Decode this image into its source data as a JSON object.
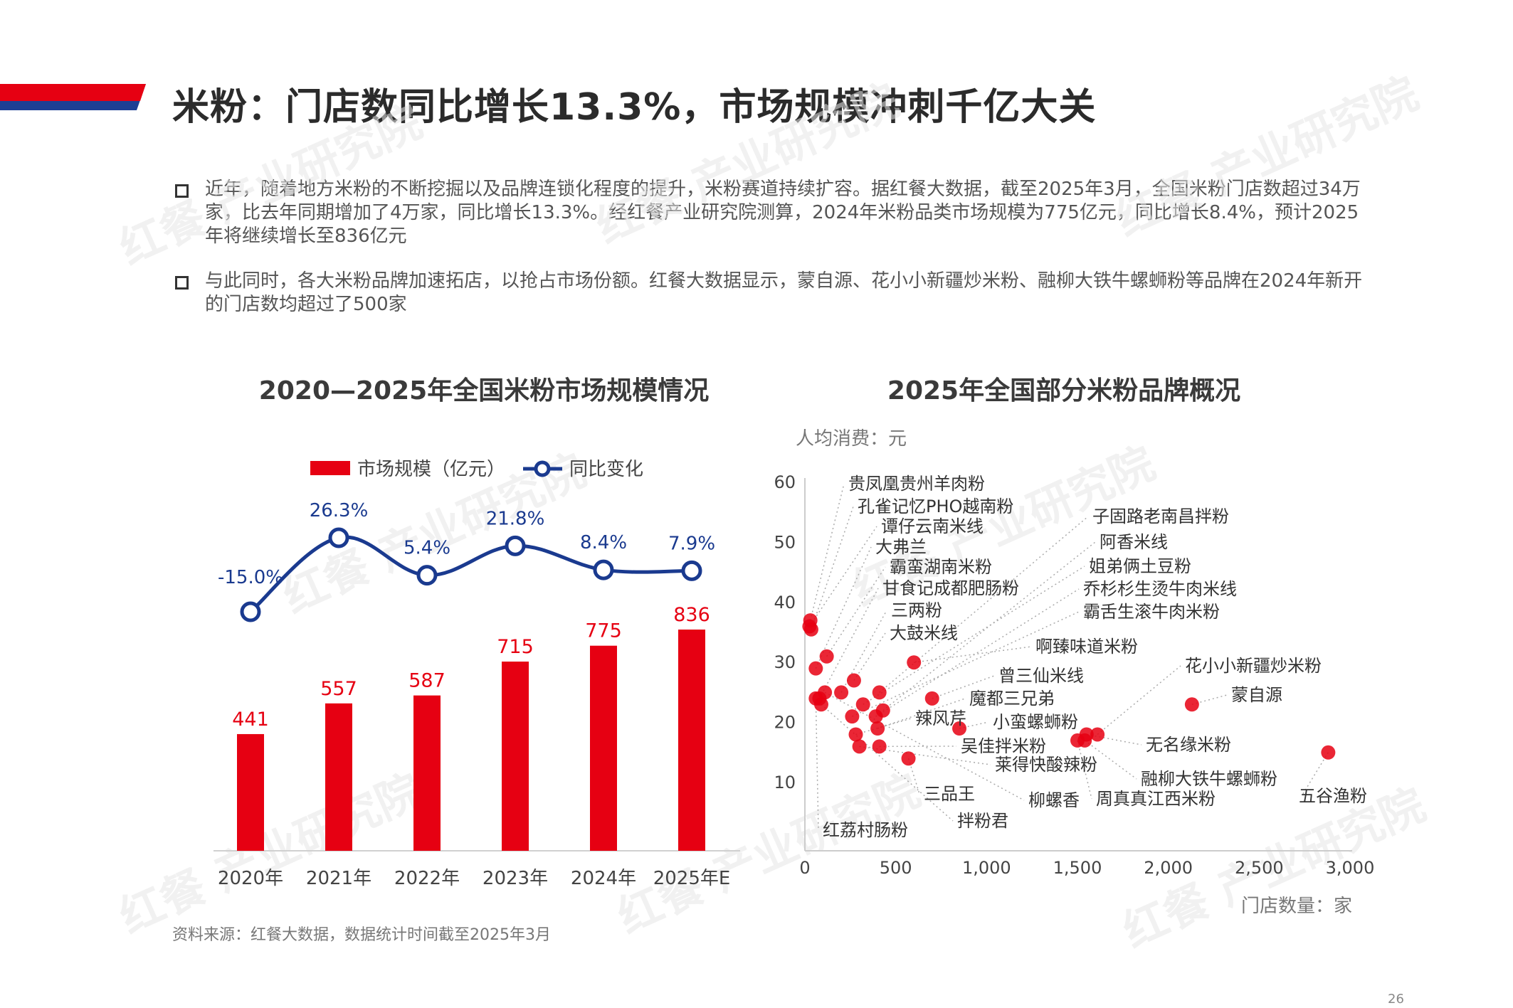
{
  "header": {
    "title": "米粉：门店数同比增长13.3%，市场规模冲刺千亿大关"
  },
  "bullets": [
    "近年，随着地方米粉的不断挖掘以及品牌连锁化程度的提升，米粉赛道持续扩容。据红餐大数据，截至2025年3月，全国米粉门店数超过34万家，比去年同期增加了4万家，同比增长13.3%。经红餐产业研究院测算，2024年米粉品类市场规模为775亿元，同比增长8.4%，预计2025年将继续增长至836亿元",
    "与此同时，各大米粉品牌加速拓店，以抢占市场份额。红餐大数据显示，蒙自源、花小小新疆炒米粉、融柳大铁牛螺蛳粉等品牌在2024年新开的门店数均超过了500家"
  ],
  "watermark_text": "红餐 产业研究院",
  "source": "资料来源：红餐大数据，数据统计时间截至2025年3月",
  "page_number": "26",
  "colors": {
    "red": "#e60012",
    "navy": "#1a3a8f",
    "header_blue": "#1d3f94"
  },
  "chart_data": [
    {
      "type": "bar",
      "title": "2020—2025年全国米粉市场规模情况",
      "categories": [
        "2020年",
        "2021年",
        "2022年",
        "2023年",
        "2024年",
        "2025年E"
      ],
      "series": [
        {
          "name": "市场规模（亿元）",
          "type": "bar",
          "values": [
            441,
            557,
            587,
            715,
            775,
            836
          ],
          "labels": [
            "441",
            "557",
            "587",
            "715",
            "775",
            "836"
          ]
        },
        {
          "name": "同比变化",
          "type": "line",
          "values": [
            -15.0,
            26.3,
            5.4,
            21.8,
            8.4,
            7.9
          ],
          "labels": [
            "-15.0%",
            "26.3%",
            "5.4%",
            "21.8%",
            "8.4%",
            "7.9%"
          ]
        }
      ],
      "legend_position": "top",
      "grid": false
    },
    {
      "type": "scatter",
      "title": "2025年全国部分米粉品牌概况",
      "xlabel": "门店数量：家",
      "ylabel": "人均消费：元",
      "xlim": [
        0,
        3000
      ],
      "ylim": [
        0,
        60
      ],
      "x_ticks": [
        "0",
        "500",
        "1,000",
        "1,500",
        "2,000",
        "2,500",
        "3,000"
      ],
      "x_tick_values": [
        0,
        500,
        1000,
        1500,
        2000,
        2500,
        3000
      ],
      "y_ticks": [
        "10",
        "20",
        "30",
        "40",
        "50",
        "60"
      ],
      "y_tick_values": [
        10,
        20,
        30,
        40,
        50,
        60
      ],
      "grid": false,
      "points": [
        {
          "name": "贵凤凰贵州羊肉粉",
          "x": 30,
          "y": 37
        },
        {
          "name": "孔雀记忆PHO越南粉",
          "x": 35,
          "y": 35.5
        },
        {
          "name": "谭仔云南米线",
          "x": 25,
          "y": 36
        },
        {
          "name": "大弗兰",
          "x": 60,
          "y": 29
        },
        {
          "name": "霸蛮湖南米粉",
          "x": 120,
          "y": 31
        },
        {
          "name": "甘食记成都肥肠粉",
          "x": 80,
          "y": 24
        },
        {
          "name": "三两粉",
          "x": 200,
          "y": 25
        },
        {
          "name": "大鼓米线",
          "x": 270,
          "y": 27
        },
        {
          "name": "啊臻味道米粉",
          "x": 600,
          "y": 30
        },
        {
          "name": "子固路老南昌拌粉",
          "x": 410,
          "y": 25
        },
        {
          "name": "阿香米线",
          "x": 430,
          "y": 22
        },
        {
          "name": "姐弟俩土豆粉",
          "x": 320,
          "y": 23
        },
        {
          "name": "乔杉杉生烫牛肉米线",
          "x": 390,
          "y": 21
        },
        {
          "name": "霸舌生滚牛肉米粉",
          "x": 260,
          "y": 21
        },
        {
          "name": "曾三仙米线",
          "x": 700,
          "y": 24
        },
        {
          "name": "魔都三兄弟",
          "x": 400,
          "y": 19
        },
        {
          "name": "辣风芹",
          "x": 280,
          "y": 18
        },
        {
          "name": "小蛮螺蛳粉",
          "x": 850,
          "y": 19
        },
        {
          "name": "花小小新疆炒米粉",
          "x": 1610,
          "y": 18
        },
        {
          "name": "蒙自源",
          "x": 2130,
          "y": 23
        },
        {
          "name": "无名缘米粉",
          "x": 1550,
          "y": 18
        },
        {
          "name": "吴佳拌米粉",
          "x": 410,
          "y": 16
        },
        {
          "name": "莱得快酸辣粉",
          "x": 300,
          "y": 16
        },
        {
          "name": "融柳大铁牛螺蛳粉",
          "x": 1540,
          "y": 17
        },
        {
          "name": "五谷渔粉",
          "x": 2880,
          "y": 15
        },
        {
          "name": "三品王",
          "x": 570,
          "y": 14
        },
        {
          "name": "柳螺香",
          "x": 110,
          "y": 25
        },
        {
          "name": "周真真江西米粉",
          "x": 1500,
          "y": 17
        },
        {
          "name": "拌粉君",
          "x": 90,
          "y": 23
        },
        {
          "name": "红荔村肠粉",
          "x": 60,
          "y": 24
        }
      ]
    }
  ]
}
